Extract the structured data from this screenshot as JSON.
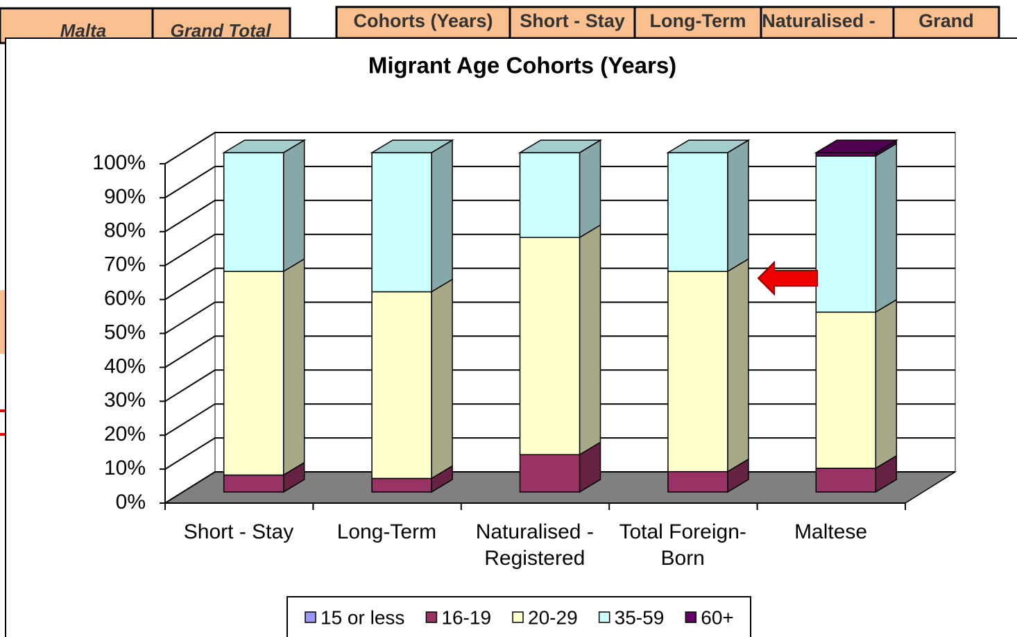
{
  "spreadsheet": {
    "header_cells": [
      "Malta",
      "Grand Total",
      "Cohorts (Years)",
      "Short - Stay",
      "Long-Term",
      "Naturalised -",
      "Grand"
    ]
  },
  "chart_data": {
    "type": "bar3d_stacked_percent",
    "title": "Migrant Age Cohorts (Years)",
    "categories": [
      "Short - Stay",
      "Long-Term",
      "Naturalised - Registered",
      "Total Foreign-Born",
      "Maltese"
    ],
    "series": [
      {
        "name": "15 or less",
        "color": "#9999ff",
        "values": [
          0,
          0,
          0,
          0,
          0
        ]
      },
      {
        "name": "16-19",
        "color": "#993366",
        "values": [
          5,
          4,
          11,
          6,
          7
        ]
      },
      {
        "name": "20-29",
        "color": "#ffffcc",
        "values": [
          60,
          55,
          64,
          59,
          46
        ]
      },
      {
        "name": "35-59",
        "color": "#ccffff",
        "values": [
          35,
          41,
          25,
          35,
          46
        ]
      },
      {
        "name": "60+",
        "color": "#660066",
        "values": [
          0,
          0,
          0,
          0,
          1
        ]
      }
    ],
    "ylim": [
      0,
      100
    ],
    "yticks": [
      {
        "value": 0,
        "label": "0%"
      },
      {
        "value": 10,
        "label": "10%"
      },
      {
        "value": 20,
        "label": "20%"
      },
      {
        "value": 30,
        "label": "30%"
      },
      {
        "value": 40,
        "label": "40%"
      },
      {
        "value": 50,
        "label": "50%"
      },
      {
        "value": 60,
        "label": "60%"
      },
      {
        "value": 70,
        "label": "70%"
      },
      {
        "value": 80,
        "label": "80%"
      },
      {
        "value": 90,
        "label": "90%"
      },
      {
        "value": 100,
        "label": "100%"
      }
    ],
    "grid": true,
    "legend": "bottom"
  }
}
